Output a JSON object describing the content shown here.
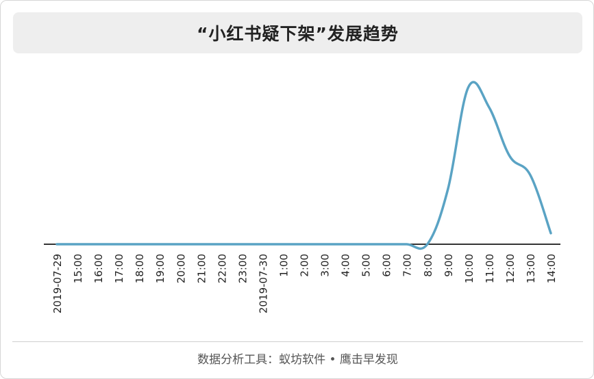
{
  "chart_data": {
    "type": "line",
    "title": "“小红书疑下架”发展趋势",
    "source": "数据分析工具：蚁坊软件 • 鹰击早发现",
    "x": [
      "2019-07-29",
      "15:00",
      "16:00",
      "17:00",
      "18:00",
      "19:00",
      "20:00",
      "21:00",
      "22:00",
      "23:00",
      "2019-07-30",
      "1:00",
      "2:00",
      "3:00",
      "4:00",
      "5:00",
      "6:00",
      "7:00",
      "8:00",
      "9:00",
      "10:00",
      "11:00",
      "12:00",
      "13:00",
      "14:00"
    ],
    "series": [
      {
        "values": [
          0,
          0,
          0,
          0,
          0,
          0,
          0,
          0,
          0,
          0,
          0,
          0,
          0,
          0,
          0,
          0,
          0,
          0,
          0,
          0.35,
          1.0,
          0.87,
          0.56,
          0.44,
          0.07
        ]
      }
    ],
    "ylim": [
      0,
      1.1
    ],
    "grid": false,
    "line_color": "#5aa3c4",
    "axis_color": "#333333"
  }
}
